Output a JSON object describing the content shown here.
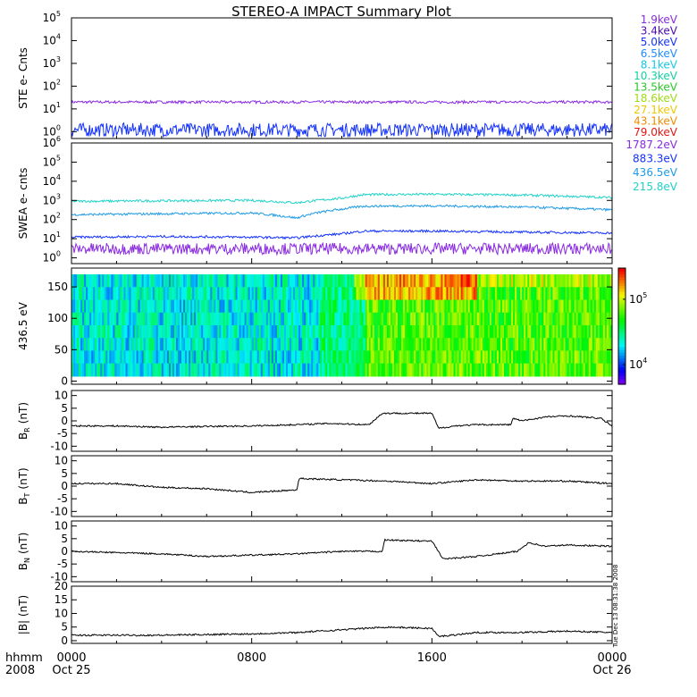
{
  "title": "STEREO-A IMPACT Summary Plot",
  "timestamp": "Tue Dec 13 08:31:38 2008",
  "time_axis": {
    "label_top": "hhmm",
    "label_bottom": "2008",
    "ticks": [
      {
        "label": "0000",
        "sub": "Oct 25",
        "hour": 0
      },
      {
        "label": "0800",
        "sub": "",
        "hour": 8
      },
      {
        "label": "1600",
        "sub": "",
        "hour": 16
      },
      {
        "label": "0000",
        "sub": "Oct 26",
        "hour": 24
      }
    ]
  },
  "chart_data": [
    {
      "type": "line",
      "id": "ste",
      "ylabel": "STE e- Cnts",
      "yscale": "log",
      "ylim": [
        0.5,
        100000
      ],
      "ytick_exponents": [
        0,
        1,
        2,
        3,
        4,
        5
      ],
      "legend": [
        {
          "label": "1.9keV",
          "color": "#8a2be2"
        },
        {
          "label": "3.4keV",
          "color": "#4b0ab4"
        },
        {
          "label": "5.0keV",
          "color": "#1432ff"
        },
        {
          "label": "6.5keV",
          "color": "#1e8cff"
        },
        {
          "label": "8.1keV",
          "color": "#14c8e6"
        },
        {
          "label": "10.3keV",
          "color": "#14d2a0"
        },
        {
          "label": "13.5keV",
          "color": "#28c828"
        },
        {
          "label": "18.6keV",
          "color": "#a0dc14"
        },
        {
          "label": "27.1keV",
          "color": "#f0c800"
        },
        {
          "label": "43.1keV",
          "color": "#f08c00"
        },
        {
          "label": "79.0keV",
          "color": "#e61414"
        }
      ],
      "series": [
        {
          "color": "#8a2be2",
          "hours": [
            0,
            24
          ],
          "values": [
            20,
            20
          ]
        },
        {
          "color": "#1432ff",
          "hours": [
            0,
            24
          ],
          "values": [
            1.2,
            1.2
          ]
        }
      ]
    },
    {
      "type": "line",
      "id": "swea",
      "ylabel": "SWEA e- cnts",
      "yscale": "log",
      "ylim": [
        0.5,
        1000000
      ],
      "ytick_exponents": [
        0,
        1,
        2,
        3,
        4,
        5,
        6
      ],
      "legend": [
        {
          "label": "1787.2eV",
          "color": "#8a2be2"
        },
        {
          "label": "883.3eV",
          "color": "#1432ff"
        },
        {
          "label": "436.5eV",
          "color": "#1e9be6"
        },
        {
          "label": "215.8eV",
          "color": "#20d2c8"
        }
      ],
      "series": [
        {
          "color": "#20d2c8",
          "hours": [
            0,
            4,
            8,
            10,
            12,
            13,
            16,
            20,
            24
          ],
          "values": [
            900,
            950,
            1000,
            750,
            1300,
            2000,
            2100,
            1900,
            1400
          ]
        },
        {
          "color": "#1e9be6",
          "hours": [
            0,
            4,
            8,
            10,
            12,
            13,
            16,
            20,
            24
          ],
          "values": [
            180,
            200,
            220,
            120,
            350,
            500,
            520,
            450,
            320
          ]
        },
        {
          "color": "#1432ff",
          "hours": [
            0,
            4,
            8,
            10,
            12,
            13,
            16,
            20,
            24
          ],
          "values": [
            12,
            13,
            12,
            11,
            18,
            25,
            25,
            22,
            20
          ]
        },
        {
          "color": "#8a2be2",
          "hours": [
            0,
            24
          ],
          "values": [
            3,
            3
          ]
        }
      ]
    },
    {
      "type": "heatmap",
      "id": "pad",
      "ylabel": "436.5 eV",
      "ylim": [
        -5,
        180
      ],
      "yticks": [
        0,
        50,
        100,
        150
      ],
      "colorbar": {
        "scale": "log",
        "range": [
          5000,
          300000
        ],
        "tick_exponents": [
          4,
          5
        ]
      }
    },
    {
      "type": "line",
      "id": "br",
      "ylabel": "B",
      "ylabel_sub": "R",
      "ylabel_unit": "(nT)",
      "ylim": [
        -12,
        12
      ],
      "yticks": [
        -10,
        -5,
        0,
        5,
        10
      ],
      "series": [
        {
          "color": "#000000",
          "hours": [
            0,
            2,
            4,
            6,
            8,
            10,
            11.5,
            13.2,
            13.8,
            16,
            16.3,
            17,
            18,
            19.5,
            19.6,
            20,
            21,
            22,
            23.5,
            24
          ],
          "values": [
            -2,
            -2,
            -2.5,
            -2.2,
            -2,
            -1.5,
            -1,
            -1.5,
            3,
            3,
            -3,
            -2,
            -1.5,
            -1.5,
            1,
            0,
            1.5,
            2,
            1,
            -2
          ]
        }
      ]
    },
    {
      "type": "line",
      "id": "bt",
      "ylabel": "B",
      "ylabel_sub": "T",
      "ylabel_unit": "(nT)",
      "ylim": [
        -12,
        12
      ],
      "yticks": [
        -10,
        -5,
        0,
        5,
        10
      ],
      "series": [
        {
          "color": "#000000",
          "hours": [
            0,
            2,
            4,
            6,
            8,
            10,
            10.1,
            12,
            14,
            16,
            18,
            20,
            22,
            24
          ],
          "values": [
            1,
            1,
            -0.5,
            -1,
            -2.5,
            -1.5,
            3,
            2.5,
            2,
            1,
            2.5,
            2,
            2,
            1
          ]
        }
      ]
    },
    {
      "type": "line",
      "id": "bn",
      "ylabel": "B",
      "ylabel_sub": "N",
      "ylabel_unit": "(nT)",
      "ylim": [
        -12,
        12
      ],
      "yticks": [
        -10,
        -5,
        0,
        5,
        10
      ],
      "series": [
        {
          "color": "#000000",
          "hours": [
            0,
            2,
            4,
            6,
            8,
            10,
            12,
            13.8,
            13.9,
            16,
            16.5,
            18,
            19.8,
            20.3,
            21,
            22,
            24
          ],
          "values": [
            0,
            -0.5,
            -1,
            -2,
            -1.5,
            -1,
            0,
            0,
            4.5,
            4,
            -3,
            -2,
            0,
            3.5,
            2,
            2.5,
            2
          ]
        }
      ]
    },
    {
      "type": "line",
      "id": "bmag",
      "ylabel": "|B| (nT)",
      "ylim": [
        -1,
        20
      ],
      "yticks": [
        0,
        5,
        10,
        15,
        20
      ],
      "series": [
        {
          "color": "#000000",
          "hours": [
            0,
            4,
            8,
            10,
            12,
            14,
            16,
            16.3,
            18,
            20,
            22,
            24
          ],
          "values": [
            2,
            2,
            2.5,
            3,
            4,
            5,
            4.5,
            1.5,
            3,
            3,
            3.5,
            3
          ]
        }
      ]
    }
  ]
}
